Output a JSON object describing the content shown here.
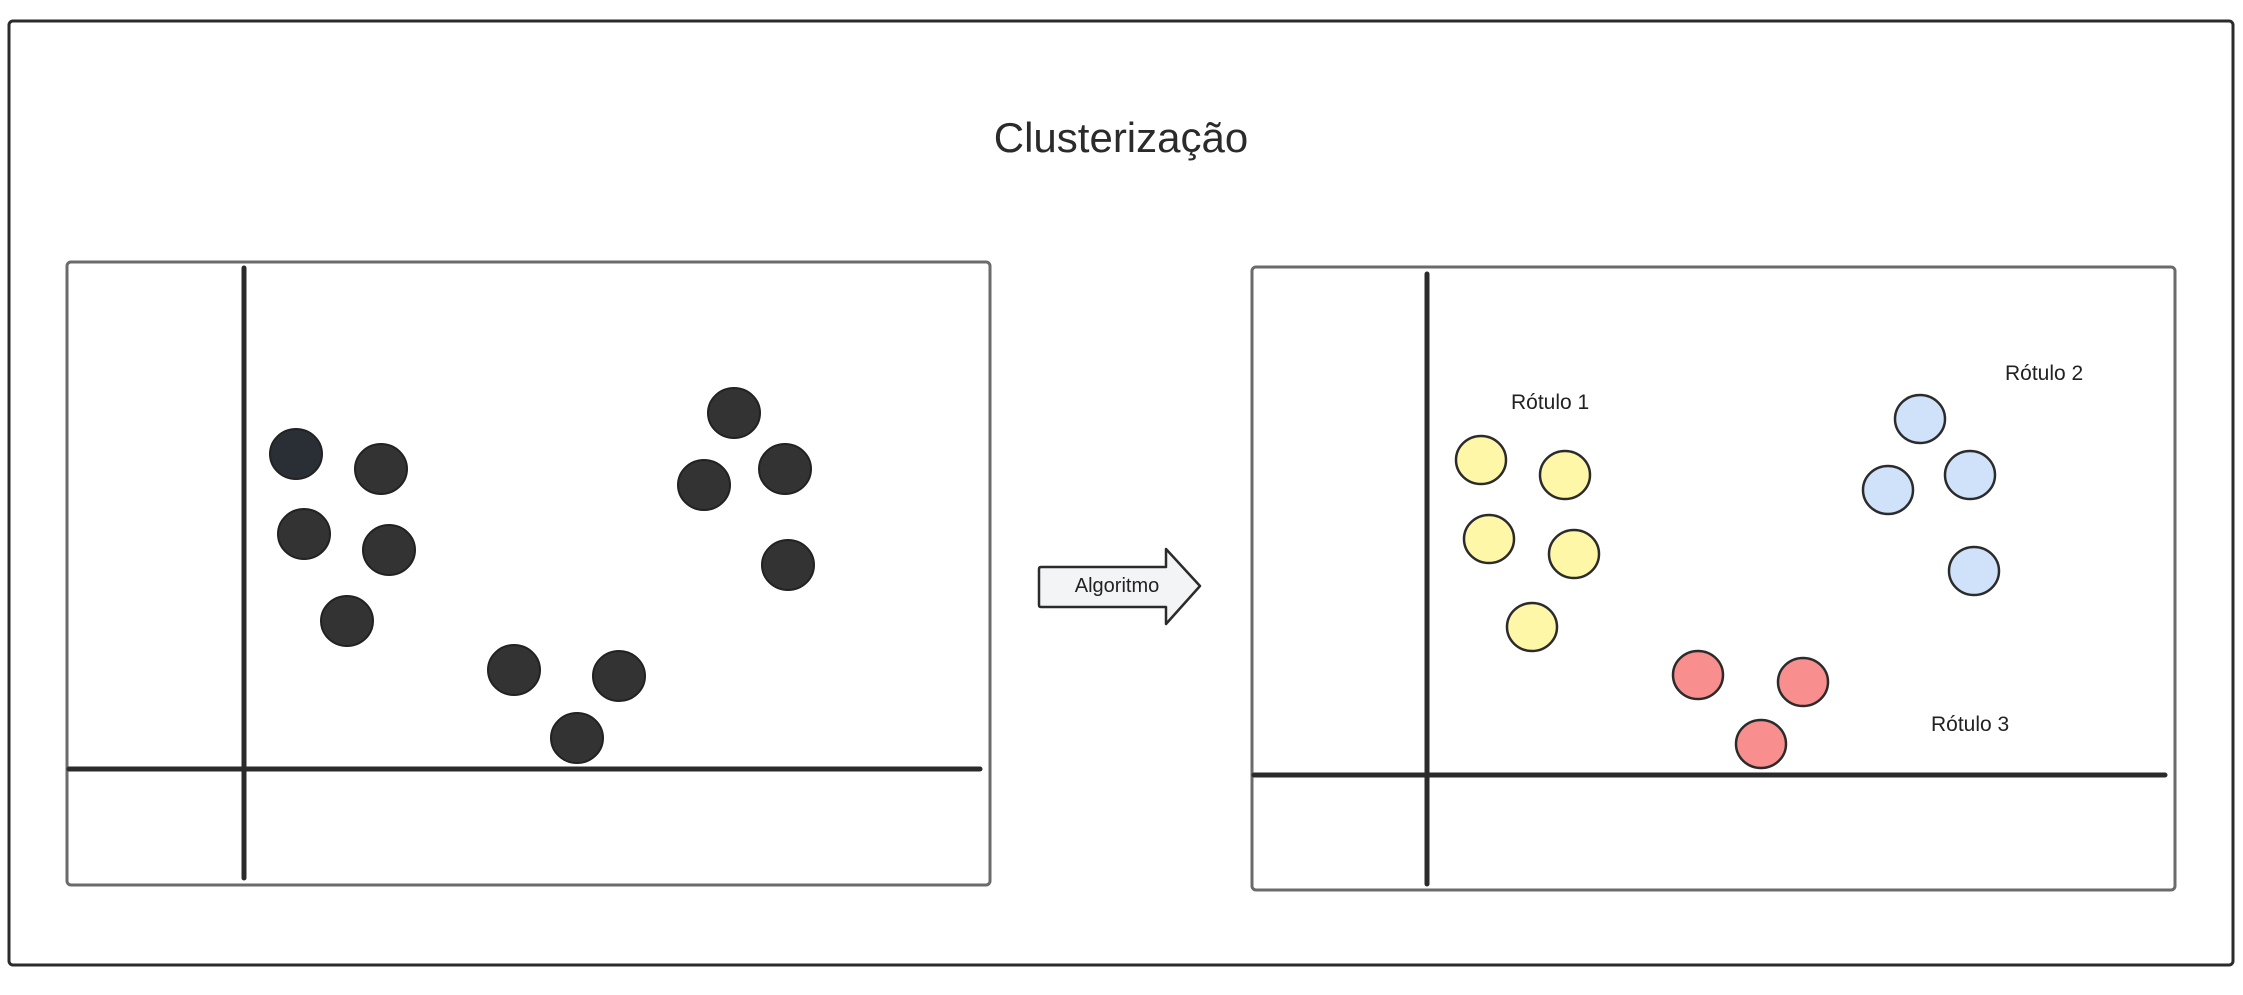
{
  "title": "Clusterização",
  "arrow_label": "Algoritmo",
  "labels": [
    "Rótulo 1",
    "Rótulo 2",
    "Rótulo 3"
  ],
  "colors": {
    "frame": "#2b2b2b",
    "panel_border": "#6b6b6b",
    "axis": "#2b2b2b",
    "unlabeled_point": "#333333",
    "cluster_1": "#fff7a8",
    "cluster_2": "#cfe2fa",
    "cluster_3": "#f88e8e",
    "arrow_fill": "#f3f4f6"
  }
}
